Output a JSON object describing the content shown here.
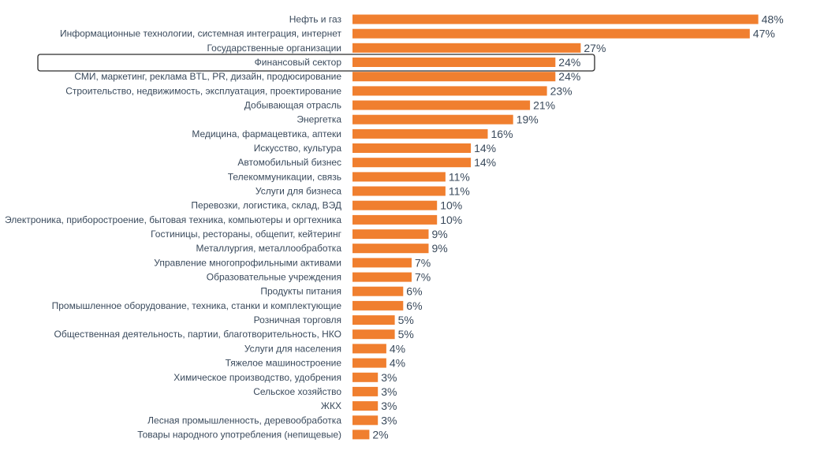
{
  "chart_data": {
    "type": "bar",
    "orientation": "horizontal",
    "categories": [
      "Нефть и газ",
      "Информационные технологии, системная интеграция, интернет",
      "Государственные организации",
      "Финансовый сектор",
      "СМИ, маркетинг, реклама BTL, PR, дизайн, продюсирование",
      "Строительство, недвижимость, эксплуатация, проектирование",
      "Добывающая отрасль",
      "Энергетка",
      "Медицина, фармацевтика, аптеки",
      "Искусство, культура",
      "Автомобильный бизнес",
      "Телекоммуникации, связь",
      "Услуги для бизнеса",
      "Перевозки, логистика, склад, ВЭД",
      "Электроника, приборостроение, бытовая техника, компьютеры и оргтехника",
      "Гостиницы, рестораны, общепит, кейтеринг",
      "Металлургия, металлообработка",
      "Управление многопрофильными активами",
      "Образовательные учреждения",
      "Продукты питания",
      "Промышленное оборудование, техника, станки и комплектующие",
      "Розничная торговля",
      "Общественная деятельность, партии, благотворительность, НКО",
      "Услуги для населения",
      "Тяжелое машиностроение",
      "Химическое производство, удобрения",
      "Сельское хозяйство",
      "ЖКХ",
      "Лесная промышленность, деревообработка",
      "Товары народного употребления (непищевые)"
    ],
    "values": [
      48,
      47,
      27,
      24,
      24,
      23,
      21,
      19,
      16,
      14,
      14,
      11,
      11,
      10,
      10,
      9,
      9,
      7,
      7,
      6,
      6,
      5,
      5,
      4,
      4,
      3,
      3,
      3,
      3,
      2
    ],
    "value_labels": [
      "48%",
      "47%",
      "27%",
      "24%",
      "24%",
      "23%",
      "21%",
      "19%",
      "16%",
      "14%",
      "14%",
      "11%",
      "11%",
      "10%",
      "10%",
      "9%",
      "9%",
      "7%",
      "7%",
      "6%",
      "6%",
      "5%",
      "5%",
      "4%",
      "4%",
      "3%",
      "3%",
      "3%",
      "3%",
      "2%"
    ],
    "unit": "%",
    "highlighted_category": "Финансовый сектор",
    "bar_color": "#f07f2f",
    "text_color": "#3a4a5c",
    "grid": false,
    "legend": "none"
  }
}
